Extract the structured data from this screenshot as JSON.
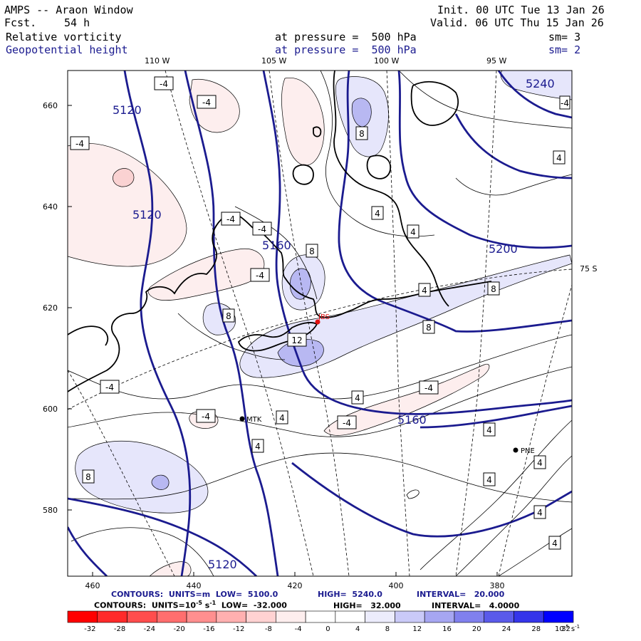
{
  "header": {
    "title": "AMPS -- Araon Window",
    "fcst_label": "Fcst.",
    "fcst_value": "54 h",
    "init": "Init. 00 UTC Tue 13 Jan 26",
    "valid": "Valid. 06 UTC Thu 15 Jan 26",
    "field1_name": "Relative vorticity",
    "field1_level": "at pressure =  500 hPa",
    "field1_sm": "sm= 3",
    "field2_name": "Geopotential height",
    "field2_level": "at pressure =  500 hPa",
    "field2_sm": "sm= 2"
  },
  "axes": {
    "top_lon": [
      "110 W",
      "105 W",
      "100 W",
      "95 W"
    ],
    "right_lat": "75 S",
    "left_ticks": [
      "660",
      "640",
      "620",
      "600",
      "580"
    ],
    "bottom_ticks": [
      "460",
      "440",
      "420",
      "400",
      "380"
    ]
  },
  "height_labels": [
    "5240",
    "5120",
    "5120",
    "5160",
    "5200",
    "5160",
    "5120"
  ],
  "vort_labels": [
    "-4",
    "-4",
    "-4",
    "-4",
    "-4",
    "-4",
    "-4",
    "-4",
    "-4",
    "-4",
    "-4",
    "8",
    "8",
    "8",
    "8",
    "8",
    "8",
    "8",
    "4",
    "4",
    "4",
    "4",
    "4",
    "4",
    "4",
    "4",
    "4",
    "4",
    "4",
    "12"
  ],
  "stations": {
    "jbs": "JBS",
    "mtk": "MTK",
    "pne": "PNE"
  },
  "footer": {
    "line1_a": "CONTOURS:  UNITS=m  LOW=  5100.0",
    "line1_b": "HIGH=  5240.0",
    "line1_c": "INTERVAL=   20.000",
    "line2_a": "CONTOURS:  UNITS=10",
    "line2_exp": "-5",
    "line2_s": " s",
    "line2_exp2": "-1",
    "line2_b": "  LOW=  -32.000",
    "line2_c": "HIGH=   32.000",
    "line2_d": "INTERVAL=   4.0000"
  },
  "colorbar": {
    "labels": [
      "-32",
      "-28",
      "-24",
      "-20",
      "-16",
      "-12",
      "-8",
      "-4",
      "0",
      "4",
      "8",
      "12",
      "16",
      "20",
      "24",
      "28",
      "32"
    ],
    "colors": [
      "#ff0000",
      "#ff2a2a",
      "#ff4d4d",
      "#ff6e6e",
      "#ff8f8f",
      "#ffb0b0",
      "#ffd2d2",
      "#fdeeee",
      "#ffffff",
      "#ffffff",
      "#ececfc",
      "#cacaf8",
      "#a6a6f2",
      "#8080ee",
      "#5a5aea",
      "#3535ea",
      "#0000ff"
    ],
    "units_a": "10",
    "units_exp": "-5",
    "units_b": " s",
    "units_exp2": "-1"
  },
  "colors": {
    "height": "#1b1b8f",
    "station_red": "#e01010",
    "neg_light": "#fdeeee",
    "neg_med": "#fad2d2",
    "pos_light": "#e6e6fb",
    "pos_med": "#b8b8f2"
  }
}
